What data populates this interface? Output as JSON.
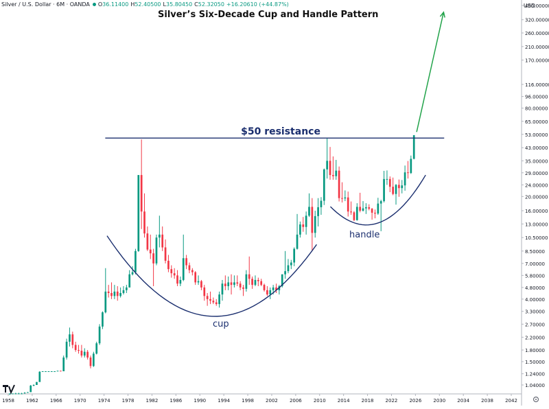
{
  "header": {
    "symbol": "Silver / U.S. Dollar · 6M · OANDA",
    "o_label": "O",
    "o_value": "36.11400",
    "h_label": "H",
    "h_value": "52.40500",
    "l_label": "L",
    "l_value": "35.80450",
    "c_label": "C",
    "c_value": "52.32050",
    "change": "+16.20610 (+44.87%)"
  },
  "currency": "USD",
  "colors": {
    "up": "#089981",
    "down": "#f23645",
    "annotation": "#1a2e6e",
    "arrow": "#22a34a"
  },
  "chart_data": {
    "type": "candlestick",
    "title": "Silver’s Six-Decade Cup and Handle Pattern",
    "y_scale": "log",
    "ylim": [
      0.9,
      500
    ],
    "xlim": [
      1957.5,
      2044.5
    ],
    "x_ticks": [
      "1958",
      "1962",
      "1966",
      "1970",
      "1974",
      "1978",
      "1982",
      "1986",
      "1990",
      "1994",
      "1998",
      "2002",
      "2006",
      "2010",
      "2014",
      "2018",
      "2022",
      "2026",
      "2030",
      "2034",
      "2038",
      "2042"
    ],
    "y_ticks": [
      "400.00000",
      "320.00000",
      "260.00000",
      "210.00000",
      "170.00000",
      "116.00000",
      "96.00000",
      "80.00000",
      "65.00000",
      "53.00000",
      "43.00000",
      "35.00000",
      "29.00000",
      "24.00000",
      "20.00000",
      "16.00000",
      "13.00000",
      "10.50000",
      "8.50000",
      "7.00000",
      "5.80000",
      "4.80000",
      "4.00000",
      "3.30000",
      "2.70000",
      "2.20000",
      "1.80000",
      "1.50000",
      "1.24000",
      "1.04000"
    ],
    "annotations": {
      "resistance": "$50 resistance",
      "cup": "cup",
      "handle": "handle"
    },
    "resistance_level": 50,
    "candles": [
      {
        "t": 1958.0,
        "o": 0.9,
        "h": 0.91,
        "l": 0.89,
        "c": 0.91
      },
      {
        "t": 1958.5,
        "o": 0.91,
        "h": 0.91,
        "l": 0.9,
        "c": 0.91
      },
      {
        "t": 1959.0,
        "o": 0.91,
        "h": 0.92,
        "l": 0.9,
        "c": 0.91
      },
      {
        "t": 1959.5,
        "o": 0.91,
        "h": 0.92,
        "l": 0.9,
        "c": 0.91
      },
      {
        "t": 1960.0,
        "o": 0.91,
        "h": 0.92,
        "l": 0.9,
        "c": 0.91
      },
      {
        "t": 1960.5,
        "o": 0.91,
        "h": 0.93,
        "l": 0.91,
        "c": 0.92
      },
      {
        "t": 1961.0,
        "o": 0.92,
        "h": 0.93,
        "l": 0.92,
        "c": 0.93
      },
      {
        "t": 1961.5,
        "o": 0.93,
        "h": 1.04,
        "l": 0.93,
        "c": 1.03
      },
      {
        "t": 1962.0,
        "o": 1.03,
        "h": 1.05,
        "l": 1.02,
        "c": 1.04
      },
      {
        "t": 1962.5,
        "o": 1.04,
        "h": 1.09,
        "l": 1.04,
        "c": 1.09
      },
      {
        "t": 1963.0,
        "o": 1.09,
        "h": 1.29,
        "l": 1.09,
        "c": 1.28
      },
      {
        "t": 1963.5,
        "o": 1.28,
        "h": 1.29,
        "l": 1.28,
        "c": 1.29
      },
      {
        "t": 1964.0,
        "o": 1.29,
        "h": 1.29,
        "l": 1.29,
        "c": 1.29
      },
      {
        "t": 1964.5,
        "o": 1.29,
        "h": 1.29,
        "l": 1.29,
        "c": 1.29
      },
      {
        "t": 1965.0,
        "o": 1.29,
        "h": 1.29,
        "l": 1.29,
        "c": 1.29
      },
      {
        "t": 1965.5,
        "o": 1.29,
        "h": 1.29,
        "l": 1.29,
        "c": 1.29
      },
      {
        "t": 1966.0,
        "o": 1.29,
        "h": 1.3,
        "l": 1.29,
        "c": 1.3
      },
      {
        "t": 1966.5,
        "o": 1.3,
        "h": 1.3,
        "l": 1.29,
        "c": 1.29
      },
      {
        "t": 1967.0,
        "o": 1.29,
        "h": 1.65,
        "l": 1.29,
        "c": 1.6
      },
      {
        "t": 1967.5,
        "o": 1.6,
        "h": 2.15,
        "l": 1.55,
        "c": 2.05
      },
      {
        "t": 1968.0,
        "o": 2.05,
        "h": 2.56,
        "l": 1.9,
        "c": 2.3
      },
      {
        "t": 1968.5,
        "o": 2.3,
        "h": 2.4,
        "l": 1.85,
        "c": 1.95
      },
      {
        "t": 1969.0,
        "o": 1.95,
        "h": 2.05,
        "l": 1.75,
        "c": 1.8
      },
      {
        "t": 1969.5,
        "o": 1.8,
        "h": 1.95,
        "l": 1.7,
        "c": 1.78
      },
      {
        "t": 1970.0,
        "o": 1.78,
        "h": 1.95,
        "l": 1.6,
        "c": 1.65
      },
      {
        "t": 1970.5,
        "o": 1.65,
        "h": 1.85,
        "l": 1.6,
        "c": 1.75
      },
      {
        "t": 1971.0,
        "o": 1.75,
        "h": 1.8,
        "l": 1.55,
        "c": 1.6
      },
      {
        "t": 1971.5,
        "o": 1.6,
        "h": 1.65,
        "l": 1.35,
        "c": 1.4
      },
      {
        "t": 1972.0,
        "o": 1.4,
        "h": 1.75,
        "l": 1.38,
        "c": 1.7
      },
      {
        "t": 1972.5,
        "o": 1.7,
        "h": 2.05,
        "l": 1.68,
        "c": 2.0
      },
      {
        "t": 1973.0,
        "o": 2.0,
        "h": 2.7,
        "l": 1.95,
        "c": 2.6
      },
      {
        "t": 1973.5,
        "o": 2.6,
        "h": 3.3,
        "l": 2.5,
        "c": 3.25
      },
      {
        "t": 1974.0,
        "o": 3.25,
        "h": 6.5,
        "l": 3.2,
        "c": 4.5
      },
      {
        "t": 1974.5,
        "o": 4.5,
        "h": 5.0,
        "l": 4.1,
        "c": 4.4
      },
      {
        "t": 1975.0,
        "o": 4.4,
        "h": 5.2,
        "l": 4.0,
        "c": 4.2
      },
      {
        "t": 1975.5,
        "o": 4.2,
        "h": 5.0,
        "l": 4.0,
        "c": 4.5
      },
      {
        "t": 1976.0,
        "o": 4.5,
        "h": 4.9,
        "l": 3.9,
        "c": 4.2
      },
      {
        "t": 1976.5,
        "o": 4.2,
        "h": 4.8,
        "l": 4.1,
        "c": 4.4
      },
      {
        "t": 1977.0,
        "o": 4.4,
        "h": 4.9,
        "l": 4.3,
        "c": 4.6
      },
      {
        "t": 1977.5,
        "o": 4.6,
        "h": 5.0,
        "l": 4.4,
        "c": 4.8
      },
      {
        "t": 1978.0,
        "o": 4.8,
        "h": 6.3,
        "l": 4.8,
        "c": 5.9
      },
      {
        "t": 1978.5,
        "o": 5.9,
        "h": 6.7,
        "l": 5.8,
        "c": 6.1
      },
      {
        "t": 1979.0,
        "o": 6.1,
        "h": 8.8,
        "l": 5.9,
        "c": 8.5
      },
      {
        "t": 1979.5,
        "o": 8.5,
        "h": 28.0,
        "l": 8.4,
        "c": 28.0
      },
      {
        "t": 1980.0,
        "o": 28.0,
        "h": 49.0,
        "l": 12.0,
        "c": 15.8
      },
      {
        "t": 1980.5,
        "o": 15.8,
        "h": 21.0,
        "l": 10.5,
        "c": 11.2
      },
      {
        "t": 1981.0,
        "o": 11.2,
        "h": 12.5,
        "l": 8.5,
        "c": 8.7
      },
      {
        "t": 1981.5,
        "o": 8.7,
        "h": 11.0,
        "l": 7.5,
        "c": 8.2
      },
      {
        "t": 1982.0,
        "o": 8.2,
        "h": 8.8,
        "l": 4.9,
        "c": 7.0
      },
      {
        "t": 1982.5,
        "o": 7.0,
        "h": 11.0,
        "l": 6.8,
        "c": 10.5
      },
      {
        "t": 1983.0,
        "o": 10.5,
        "h": 14.8,
        "l": 9.0,
        "c": 11.0
      },
      {
        "t": 1983.5,
        "o": 11.0,
        "h": 12.5,
        "l": 8.5,
        "c": 9.0
      },
      {
        "t": 1984.0,
        "o": 9.0,
        "h": 10.2,
        "l": 7.0,
        "c": 7.3
      },
      {
        "t": 1984.5,
        "o": 7.3,
        "h": 8.0,
        "l": 6.1,
        "c": 6.4
      },
      {
        "t": 1985.0,
        "o": 6.4,
        "h": 6.8,
        "l": 5.6,
        "c": 6.0
      },
      {
        "t": 1985.5,
        "o": 6.0,
        "h": 6.5,
        "l": 5.5,
        "c": 5.8
      },
      {
        "t": 1986.0,
        "o": 5.8,
        "h": 6.3,
        "l": 4.9,
        "c": 5.1
      },
      {
        "t": 1986.5,
        "o": 5.1,
        "h": 5.7,
        "l": 4.9,
        "c": 5.4
      },
      {
        "t": 1987.0,
        "o": 5.4,
        "h": 11.0,
        "l": 5.3,
        "c": 7.6
      },
      {
        "t": 1987.5,
        "o": 7.6,
        "h": 8.0,
        "l": 6.4,
        "c": 6.8
      },
      {
        "t": 1988.0,
        "o": 6.8,
        "h": 7.1,
        "l": 6.0,
        "c": 6.3
      },
      {
        "t": 1988.5,
        "o": 6.3,
        "h": 6.5,
        "l": 5.8,
        "c": 6.1
      },
      {
        "t": 1989.0,
        "o": 6.1,
        "h": 6.2,
        "l": 5.0,
        "c": 5.2
      },
      {
        "t": 1989.5,
        "o": 5.2,
        "h": 5.8,
        "l": 5.0,
        "c": 5.3
      },
      {
        "t": 1990.0,
        "o": 5.3,
        "h": 5.4,
        "l": 4.6,
        "c": 4.8
      },
      {
        "t": 1990.5,
        "o": 4.8,
        "h": 5.0,
        "l": 3.9,
        "c": 4.2
      },
      {
        "t": 1991.0,
        "o": 4.2,
        "h": 4.4,
        "l": 3.6,
        "c": 4.0
      },
      {
        "t": 1991.5,
        "o": 4.0,
        "h": 4.5,
        "l": 3.7,
        "c": 3.9
      },
      {
        "t": 1992.0,
        "o": 3.9,
        "h": 4.1,
        "l": 3.7,
        "c": 3.8
      },
      {
        "t": 1992.5,
        "o": 3.8,
        "h": 4.0,
        "l": 3.6,
        "c": 3.7
      },
      {
        "t": 1993.0,
        "o": 3.7,
        "h": 4.5,
        "l": 3.5,
        "c": 4.3
      },
      {
        "t": 1993.5,
        "o": 4.3,
        "h": 5.4,
        "l": 3.9,
        "c": 5.1
      },
      {
        "t": 1994.0,
        "o": 5.1,
        "h": 5.8,
        "l": 4.6,
        "c": 4.9
      },
      {
        "t": 1994.5,
        "o": 4.9,
        "h": 5.7,
        "l": 4.6,
        "c": 5.2
      },
      {
        "t": 1995.0,
        "o": 5.2,
        "h": 5.9,
        "l": 4.3,
        "c": 5.0
      },
      {
        "t": 1995.5,
        "o": 5.0,
        "h": 5.8,
        "l": 4.8,
        "c": 5.2
      },
      {
        "t": 1996.0,
        "o": 5.2,
        "h": 5.8,
        "l": 4.9,
        "c": 5.1
      },
      {
        "t": 1996.5,
        "o": 5.1,
        "h": 5.3,
        "l": 4.6,
        "c": 4.8
      },
      {
        "t": 1997.0,
        "o": 4.8,
        "h": 5.0,
        "l": 4.2,
        "c": 4.7
      },
      {
        "t": 1997.5,
        "o": 4.7,
        "h": 6.3,
        "l": 4.5,
        "c": 5.9
      },
      {
        "t": 1998.0,
        "o": 5.9,
        "h": 7.8,
        "l": 5.0,
        "c": 5.5
      },
      {
        "t": 1998.5,
        "o": 5.5,
        "h": 5.7,
        "l": 4.7,
        "c": 5.0
      },
      {
        "t": 1999.0,
        "o": 5.0,
        "h": 5.8,
        "l": 4.9,
        "c": 5.4
      },
      {
        "t": 1999.5,
        "o": 5.4,
        "h": 5.6,
        "l": 4.9,
        "c": 5.3
      },
      {
        "t": 2000.0,
        "o": 5.3,
        "h": 5.5,
        "l": 4.9,
        "c": 5.0
      },
      {
        "t": 2000.5,
        "o": 5.0,
        "h": 5.1,
        "l": 4.5,
        "c": 4.6
      },
      {
        "t": 2001.0,
        "o": 4.6,
        "h": 4.9,
        "l": 4.2,
        "c": 4.3
      },
      {
        "t": 2001.5,
        "o": 4.3,
        "h": 4.8,
        "l": 4.0,
        "c": 4.6
      },
      {
        "t": 2002.0,
        "o": 4.6,
        "h": 5.0,
        "l": 4.3,
        "c": 4.8
      },
      {
        "t": 2002.5,
        "o": 4.8,
        "h": 5.1,
        "l": 4.4,
        "c": 4.6
      },
      {
        "t": 2003.0,
        "o": 4.6,
        "h": 5.0,
        "l": 4.3,
        "c": 4.9
      },
      {
        "t": 2003.5,
        "o": 4.9,
        "h": 5.9,
        "l": 4.8,
        "c": 5.9
      },
      {
        "t": 2004.0,
        "o": 5.9,
        "h": 8.5,
        "l": 5.5,
        "c": 6.2
      },
      {
        "t": 2004.5,
        "o": 6.2,
        "h": 7.5,
        "l": 6.0,
        "c": 6.8
      },
      {
        "t": 2005.0,
        "o": 6.8,
        "h": 7.4,
        "l": 6.4,
        "c": 7.1
      },
      {
        "t": 2005.5,
        "o": 7.1,
        "h": 9.0,
        "l": 6.7,
        "c": 8.8
      },
      {
        "t": 2006.0,
        "o": 8.8,
        "h": 15.2,
        "l": 8.7,
        "c": 11.0
      },
      {
        "t": 2006.5,
        "o": 11.0,
        "h": 13.5,
        "l": 10.5,
        "c": 12.9
      },
      {
        "t": 2007.0,
        "o": 12.9,
        "h": 14.5,
        "l": 11.5,
        "c": 12.4
      },
      {
        "t": 2007.5,
        "o": 12.4,
        "h": 15.8,
        "l": 11.0,
        "c": 14.8
      },
      {
        "t": 2008.0,
        "o": 14.8,
        "h": 21.0,
        "l": 14.5,
        "c": 17.0
      },
      {
        "t": 2008.5,
        "o": 17.0,
        "h": 19.5,
        "l": 8.5,
        "c": 11.3
      },
      {
        "t": 2009.0,
        "o": 11.3,
        "h": 16.0,
        "l": 10.5,
        "c": 14.7
      },
      {
        "t": 2009.5,
        "o": 14.7,
        "h": 19.5,
        "l": 12.5,
        "c": 16.9
      },
      {
        "t": 2010.0,
        "o": 16.9,
        "h": 19.8,
        "l": 15.0,
        "c": 18.7
      },
      {
        "t": 2010.5,
        "o": 18.7,
        "h": 31.0,
        "l": 17.5,
        "c": 30.6
      },
      {
        "t": 2011.0,
        "o": 30.6,
        "h": 49.8,
        "l": 26.5,
        "c": 35.0
      },
      {
        "t": 2011.5,
        "o": 35.0,
        "h": 43.5,
        "l": 26.0,
        "c": 28.0
      },
      {
        "t": 2012.0,
        "o": 28.0,
        "h": 37.5,
        "l": 26.0,
        "c": 27.5
      },
      {
        "t": 2012.5,
        "o": 27.5,
        "h": 35.5,
        "l": 26.0,
        "c": 30.0
      },
      {
        "t": 2013.0,
        "o": 30.0,
        "h": 32.0,
        "l": 18.5,
        "c": 19.5
      },
      {
        "t": 2013.5,
        "o": 19.5,
        "h": 25.0,
        "l": 18.2,
        "c": 19.4
      },
      {
        "t": 2014.0,
        "o": 19.4,
        "h": 22.0,
        "l": 18.6,
        "c": 19.7
      },
      {
        "t": 2014.5,
        "o": 19.7,
        "h": 21.6,
        "l": 14.6,
        "c": 15.8
      },
      {
        "t": 2015.0,
        "o": 15.8,
        "h": 18.5,
        "l": 15.0,
        "c": 15.6
      },
      {
        "t": 2015.5,
        "o": 15.6,
        "h": 15.9,
        "l": 13.6,
        "c": 13.8
      },
      {
        "t": 2016.0,
        "o": 13.8,
        "h": 18.0,
        "l": 13.7,
        "c": 17.0
      },
      {
        "t": 2016.5,
        "o": 17.0,
        "h": 21.2,
        "l": 15.6,
        "c": 16.0
      },
      {
        "t": 2017.0,
        "o": 16.0,
        "h": 18.6,
        "l": 15.8,
        "c": 16.6
      },
      {
        "t": 2017.5,
        "o": 16.6,
        "h": 18.0,
        "l": 15.2,
        "c": 16.9
      },
      {
        "t": 2018.0,
        "o": 16.9,
        "h": 17.7,
        "l": 16.1,
        "c": 16.5
      },
      {
        "t": 2018.5,
        "o": 16.5,
        "h": 16.7,
        "l": 13.9,
        "c": 15.5
      },
      {
        "t": 2019.0,
        "o": 15.5,
        "h": 16.3,
        "l": 14.2,
        "c": 15.3
      },
      {
        "t": 2019.5,
        "o": 15.3,
        "h": 19.6,
        "l": 15.0,
        "c": 17.9
      },
      {
        "t": 2020.0,
        "o": 17.9,
        "h": 19.0,
        "l": 11.6,
        "c": 18.6
      },
      {
        "t": 2020.5,
        "o": 18.6,
        "h": 29.9,
        "l": 18.2,
        "c": 26.3
      },
      {
        "t": 2021.0,
        "o": 26.3,
        "h": 30.1,
        "l": 24.0,
        "c": 26.3
      },
      {
        "t": 2021.5,
        "o": 26.3,
        "h": 27.4,
        "l": 21.4,
        "c": 23.3
      },
      {
        "t": 2022.0,
        "o": 23.3,
        "h": 26.9,
        "l": 20.4,
        "c": 20.8
      },
      {
        "t": 2022.5,
        "o": 20.8,
        "h": 24.3,
        "l": 17.6,
        "c": 24.0
      },
      {
        "t": 2023.0,
        "o": 24.0,
        "h": 26.1,
        "l": 19.9,
        "c": 22.8
      },
      {
        "t": 2023.5,
        "o": 22.8,
        "h": 25.9,
        "l": 21.0,
        "c": 23.8
      },
      {
        "t": 2024.0,
        "o": 23.8,
        "h": 32.5,
        "l": 21.9,
        "c": 29.2
      },
      {
        "t": 2024.5,
        "o": 29.2,
        "h": 34.9,
        "l": 26.5,
        "c": 28.9
      },
      {
        "t": 2025.0,
        "o": 28.9,
        "h": 38.0,
        "l": 28.5,
        "c": 36.1
      },
      {
        "t": 2025.5,
        "o": 36.114,
        "h": 52.405,
        "l": 35.8045,
        "c": 52.3205
      }
    ]
  }
}
